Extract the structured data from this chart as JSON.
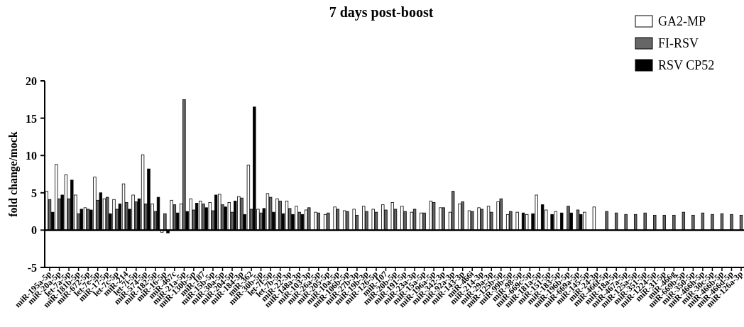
{
  "chart_data": {
    "type": "bar",
    "title": "7 days post-boost",
    "ylabel": "fold change/mock",
    "categories": [
      "miR-195a-5p",
      "miR-20a-5p",
      "let-7a-5p",
      "miR-181b-5p",
      "miR-672-5p",
      "let-7e-5p",
      "miR-17-5p",
      "let-7c-5p",
      "miR-214",
      "let-7i-5p",
      "miR-574-5p",
      "miR-182-5p",
      "miR-16-5p",
      "miR-467c",
      "miR-21a-5p",
      "miR-130b-5p",
      "miR-187",
      "miR-15b-5p",
      "miR-30a-5p",
      "miR-204-5p",
      "miR-184-3p",
      "miR-362",
      "miR-30b-5p",
      "let-7f-5p",
      "let-7b-5p",
      "miR-22-3p",
      "miR-148a-3p",
      "miR-103-3p",
      "miR-26a-5p",
      "miR-205-5p",
      "miR-10a-5p",
      "miR-106b-5p",
      "miR-27b-3p",
      "miR-19b-3p",
      "miR-126-5p",
      "miR-107",
      "miR-20b-5p",
      "miR-191-5p",
      "miR-23a-3p",
      "miR-15a-5p",
      "miR-196a-5p",
      "miR-342-3p",
      "miR-92a-3p",
      "miR-143-3p",
      "miR-466i",
      "miR-214-3p",
      "miR-29a-3p",
      "miR-125b-5p",
      "miR-99b-5p",
      "miR-98-5p",
      "miR-669c-5p",
      "miR-181a-5p",
      "miR-151-5p",
      "miR-183-5p",
      "miR-196b-5p",
      "miR-669a-5p",
      "miR-145-5p",
      "miR-24-3p",
      "miR-466f-5p",
      "miR-18a-5p",
      "miR-467a-5p",
      "miR-125a-5p",
      "miR-351-5p",
      "miR-1224-5p",
      "miR-31-5p",
      "miR-466g",
      "miR-669b-5p",
      "miR-350-5p",
      "miR-466h-5p",
      "miR-30c-5p",
      "miR-466b-5p",
      "miR-466d-5p",
      "miR-126a-3p"
    ],
    "series": [
      {
        "name": "GA2-MP",
        "color": "#ffffff",
        "values": [
          5.2,
          8.8,
          7.4,
          4.7,
          3.0,
          7.1,
          4.2,
          4.1,
          6.2,
          4.7,
          10.1,
          3.5,
          -0.3,
          4.0,
          3.5,
          4.2,
          3.9,
          3.7,
          4.8,
          3.7,
          4.5,
          8.7,
          2.8,
          4.9,
          4.2,
          3.9,
          3.2,
          2.7,
          2.4,
          2.1,
          3.1,
          2.6,
          2.8,
          3.2,
          2.8,
          3.4,
          3.7,
          3.2,
          2.4,
          2.3,
          3.9,
          3.0,
          2.4,
          3.5,
          2.6,
          3.0,
          3.2,
          3.8,
          2.1,
          2.4,
          2.1,
          4.7,
          2.7,
          2.5,
          null,
          null,
          2.4,
          3.1,
          null,
          null,
          null,
          null,
          null,
          null,
          null,
          null,
          null,
          null,
          null,
          null,
          null,
          null,
          null
        ]
      },
      {
        "name": "FI-RSV",
        "color": "#666666",
        "values": [
          4.1,
          4.2,
          4.2,
          2.2,
          2.8,
          4.0,
          4.4,
          2.8,
          3.7,
          3.8,
          3.5,
          2.5,
          2.2,
          3.4,
          17.5,
          2.7,
          3.5,
          2.6,
          3.4,
          2.4,
          4.3,
          2.8,
          2.3,
          4.4,
          3.9,
          2.9,
          2.4,
          3.0,
          2.3,
          2.3,
          2.8,
          2.5,
          2.0,
          2.5,
          2.4,
          2.7,
          2.8,
          2.5,
          2.8,
          2.3,
          3.7,
          3.0,
          5.2,
          3.8,
          2.5,
          2.8,
          2.4,
          4.2,
          2.5,
          null,
          null,
          null,
          null,
          null,
          3.2,
          2.7,
          null,
          null,
          2.5,
          2.3,
          2.1,
          2.1,
          2.3,
          2.0,
          2.0,
          2.0,
          2.4,
          2.0,
          2.3,
          2.1,
          2.2,
          2.1,
          2.0
        ]
      },
      {
        "name": "RSV CP52",
        "color": "#000000",
        "values": [
          2.4,
          4.7,
          6.7,
          2.8,
          2.7,
          5.0,
          2.2,
          3.5,
          2.8,
          4.2,
          8.2,
          4.4,
          -0.4,
          2.3,
          2.5,
          3.6,
          3.0,
          4.7,
          3.1,
          3.9,
          2.1,
          16.5,
          2.9,
          2.4,
          2.2,
          2.1,
          2.1,
          null,
          null,
          null,
          null,
          null,
          null,
          null,
          null,
          null,
          null,
          null,
          null,
          null,
          null,
          null,
          null,
          null,
          null,
          null,
          null,
          null,
          null,
          2.3,
          2.2,
          3.4,
          2.1,
          2.3,
          2.3,
          2.1,
          null,
          null,
          null,
          null,
          null,
          null,
          null,
          null,
          null,
          null,
          null,
          null,
          null,
          null,
          null,
          null,
          null
        ]
      }
    ],
    "ylim": [
      -5,
      20
    ],
    "yticks": [
      -5,
      0,
      5,
      10,
      15,
      20
    ],
    "legend": "top right"
  }
}
